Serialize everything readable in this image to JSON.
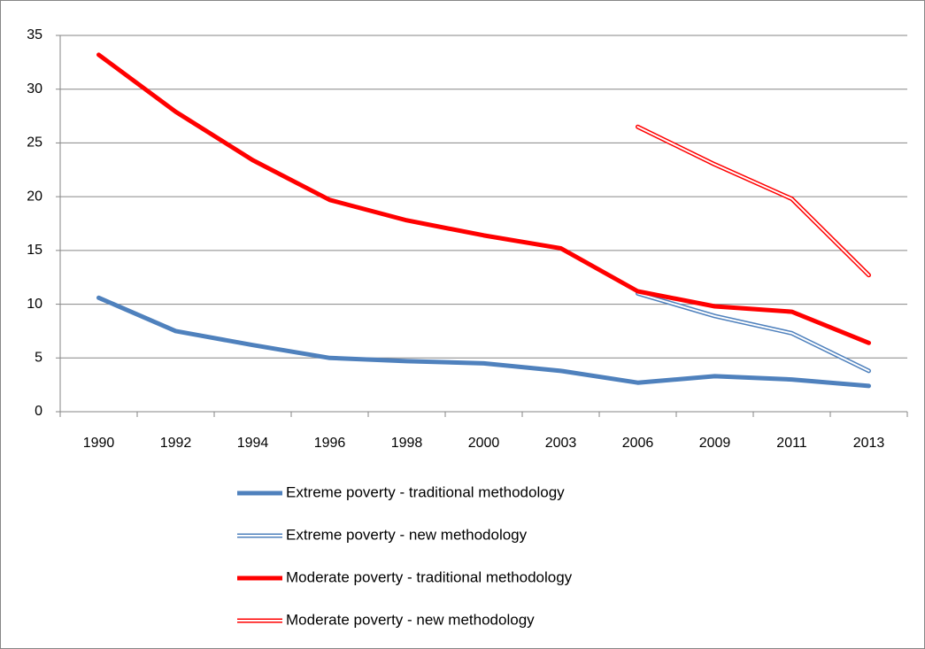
{
  "chart_data": {
    "type": "line",
    "categories": [
      "1990",
      "1992",
      "1994",
      "1996",
      "1998",
      "2000",
      "2003",
      "2006",
      "2009",
      "2011",
      "2013"
    ],
    "series": [
      {
        "name": "Extreme poverty - traditional methodology",
        "color": "#4f81bd",
        "line_style": "solid",
        "values": [
          10.6,
          7.5,
          6.2,
          5.0,
          4.7,
          4.5,
          3.8,
          2.7,
          3.3,
          3.0,
          2.4
        ]
      },
      {
        "name": "Extreme poverty - new methodology",
        "color": "#4f81bd",
        "line_style": "double",
        "values": [
          null,
          null,
          null,
          null,
          null,
          null,
          null,
          11.0,
          8.9,
          7.3,
          3.8
        ]
      },
      {
        "name": "Moderate poverty - traditional methodology",
        "color": "#ff0000",
        "line_style": "solid",
        "values": [
          33.2,
          27.9,
          23.4,
          19.7,
          17.8,
          16.4,
          15.2,
          11.2,
          9.8,
          9.3,
          6.4
        ]
      },
      {
        "name": "Moderate poverty - new methodology",
        "color": "#ff0000",
        "line_style": "double",
        "values": [
          null,
          null,
          null,
          null,
          null,
          null,
          null,
          26.5,
          23.0,
          19.8,
          12.7
        ]
      }
    ],
    "ylim": [
      0,
      35
    ],
    "yticks": [
      0,
      5,
      10,
      15,
      20,
      25,
      30,
      35
    ],
    "grid": true,
    "legend": "bottom"
  }
}
